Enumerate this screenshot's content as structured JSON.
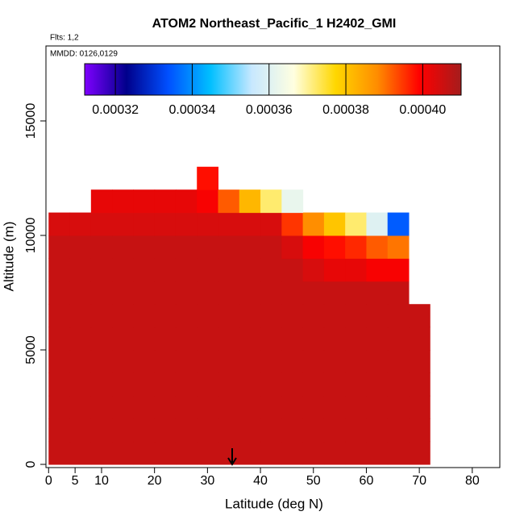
{
  "chart_data": {
    "type": "heatmap",
    "title": "ATOM2 Northeast_Pacific_1 H2402_GMI",
    "subtitle": "Flts: 1,2",
    "annotation": "MMDD: 0126,0129",
    "x_label": "Latitude (deg N)",
    "y_label": "Altitude (m)",
    "xlim": [
      -0.5,
      85.2
    ],
    "xticks": [
      0,
      5,
      10,
      20,
      30,
      40,
      50,
      60,
      70,
      80
    ],
    "ylim": [
      -140,
      18275
    ],
    "yticks": [
      0,
      5000,
      10000,
      15000
    ],
    "lat_edges": [
      0,
      4,
      8,
      12,
      16,
      20,
      24,
      28,
      32,
      36,
      40,
      44,
      48,
      52,
      56,
      60,
      64,
      68,
      72
    ],
    "alt_edges": [
      0,
      1000,
      2000,
      3000,
      4000,
      5000,
      6000,
      7000,
      8000,
      9000,
      10000,
      11000,
      12000,
      13000
    ],
    "values": [
      [
        0.000406,
        0.000406,
        0.000406,
        0.000406,
        0.000406,
        0.000406,
        0.000406,
        0.000406,
        0.000406,
        0.000406,
        0.000406,
        0.000406,
        0.000406,
        0.000406,
        0.000406,
        0.000406,
        0.000406,
        0.000406
      ],
      [
        0.000406,
        0.000406,
        0.000406,
        0.000406,
        0.000406,
        0.000406,
        0.000406,
        0.000406,
        0.000406,
        0.000406,
        0.000406,
        0.000406,
        0.000406,
        0.000406,
        0.000406,
        0.000406,
        0.000406,
        0.000406
      ],
      [
        0.000406,
        0.000406,
        0.000406,
        0.000406,
        0.000406,
        0.000406,
        0.000406,
        0.000406,
        0.000406,
        0.000406,
        0.000406,
        0.000406,
        0.000406,
        0.000406,
        0.000406,
        0.000406,
        0.000406,
        0.000406
      ],
      [
        0.000406,
        0.000406,
        0.000406,
        0.000406,
        0.000406,
        0.000406,
        0.000406,
        0.000406,
        0.000406,
        0.000406,
        0.000406,
        0.000406,
        0.000406,
        0.000406,
        0.000406,
        0.000406,
        0.000406,
        0.000406
      ],
      [
        0.000406,
        0.000406,
        0.000406,
        0.000406,
        0.000406,
        0.000406,
        0.000406,
        0.000406,
        0.000406,
        0.000406,
        0.000406,
        0.000406,
        0.000406,
        0.000406,
        0.000406,
        0.000406,
        0.000406,
        0.000406
      ],
      [
        0.000406,
        0.000406,
        0.000406,
        0.000406,
        0.000406,
        0.000406,
        0.000406,
        0.000406,
        0.000406,
        0.000406,
        0.000406,
        0.000406,
        0.000406,
        0.000406,
        0.000406,
        0.000406,
        0.000406,
        0.000406
      ],
      [
        0.000406,
        0.000406,
        0.000406,
        0.000406,
        0.000406,
        0.000406,
        0.000406,
        0.000406,
        0.000406,
        0.000406,
        0.000406,
        0.000406,
        0.000406,
        0.000406,
        0.000406,
        0.000406,
        0.000406,
        0.000406
      ],
      [
        0.000406,
        0.000406,
        0.000406,
        0.000406,
        0.000406,
        0.000406,
        0.000406,
        0.000406,
        0.000406,
        0.000406,
        0.000406,
        0.000406,
        0.000406,
        0.000406,
        0.000406,
        0.000406,
        0.000406,
        null
      ],
      [
        0.000406,
        0.000406,
        0.000406,
        0.000406,
        0.000406,
        0.000406,
        0.000406,
        0.000406,
        0.000406,
        0.000406,
        0.000406,
        0.000406,
        0.000404,
        0.000402,
        0.000402,
        0.0004,
        0.0004,
        null
      ],
      [
        0.000406,
        0.000406,
        0.000406,
        0.000406,
        0.000406,
        0.000406,
        0.000406,
        0.000406,
        0.000406,
        0.000406,
        0.000406,
        0.000404,
        0.0004,
        0.000398,
        0.000396,
        0.000392,
        0.00039,
        null
      ],
      [
        0.000404,
        0.000404,
        0.000404,
        0.000404,
        0.000404,
        0.000404,
        0.000404,
        0.000404,
        0.000404,
        0.000404,
        0.000404,
        0.000395,
        0.000388,
        0.00038,
        0.000372,
        0.00036,
        0.000335,
        null
      ],
      [
        null,
        null,
        0.000402,
        0.000402,
        0.000402,
        0.000402,
        0.000402,
        0.0004,
        0.000392,
        0.000382,
        0.000372,
        0.000362,
        null,
        null,
        null,
        null,
        null,
        null
      ],
      [
        null,
        null,
        null,
        null,
        null,
        null,
        null,
        0.000398,
        null,
        null,
        null,
        null,
        null,
        null,
        null,
        null,
        null,
        null
      ]
    ],
    "zlim": [
      0.000312,
      0.00041
    ],
    "zticks": [
      0.00032,
      0.00034,
      0.00036,
      {
        "value": 0.00038,
        "label": "0.00038"
      },
      {
        "value": 0.0004,
        "label": "0.00040"
      }
    ],
    "colors": [
      "#7f00ff",
      "#00008b",
      "#0050ff",
      "#00bfff",
      "#c8e8ff",
      "#ffffe0",
      "#ffd700",
      "#ff8c00",
      "#ff0000",
      "#a51c1c"
    ]
  }
}
